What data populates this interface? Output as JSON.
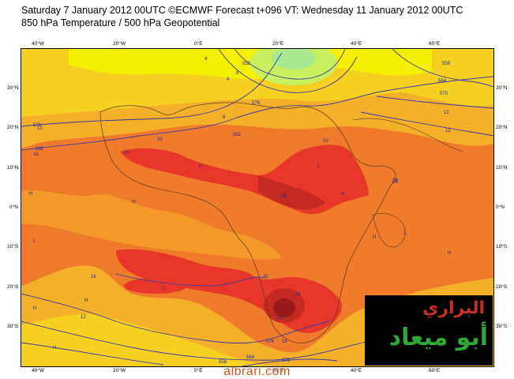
{
  "header": {
    "line1": "Saturday 7 January 2012 00UTC ©ECMWF Forecast t+096 VT: Wednesday 11 January 2012 00UTC",
    "line2": "850 hPa Temperature / 500 hPa Geopotential"
  },
  "axes": {
    "lon_labels": [
      "40°W",
      "20°W",
      "0°E",
      "20°E",
      "40°E",
      "60°E"
    ],
    "lat_labels": [
      "30°N",
      "20°N",
      "10°N",
      "0°N",
      "10°S",
      "20°S",
      "30°S"
    ]
  },
  "contour_labels": {
    "geopotential": [
      "576",
      "582",
      "564",
      "558",
      "552",
      "570",
      "576",
      "582",
      "576",
      "564",
      "558",
      "570"
    ],
    "temperature": [
      "12",
      "16",
      "20",
      "20",
      "24",
      "20",
      "16",
      "12",
      "8",
      "4",
      "16",
      "20",
      "24",
      "16",
      "12",
      "12",
      "4",
      "8",
      "16",
      "28"
    ]
  },
  "pressure_centres": [
    "H",
    "L",
    "H",
    "H",
    "L",
    "H",
    "H",
    "L",
    "H",
    "H",
    "H",
    "L",
    "H"
  ],
  "logo": {
    "line1": "البراري",
    "line2": "أبو ميعاد"
  },
  "footer": "albrari.com",
  "colors": {
    "yellow": "#f4f000",
    "light_orange": "#f5b02a",
    "orange": "#ee7a2a",
    "red": "#e8372a",
    "dark_red": "#b0201e",
    "contour": "#3a3aa0"
  }
}
